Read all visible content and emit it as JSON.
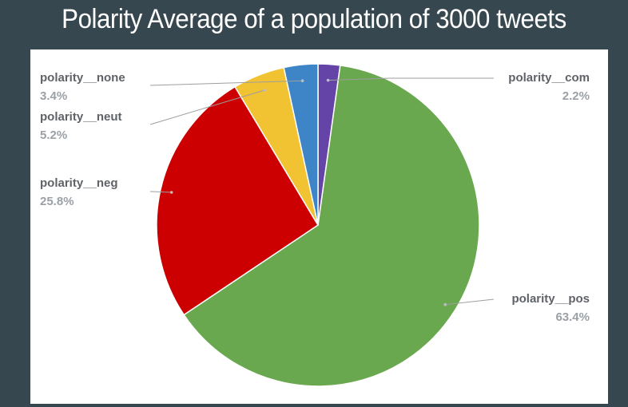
{
  "slide": {
    "title": "Polarity Average of a population of 3000 tweets"
  },
  "chart_data": {
    "type": "pie",
    "title": "Polarity Average of a population of 3000 tweets",
    "start_angle_deg": 0,
    "direction": "clockwise",
    "slices": [
      {
        "key": "com",
        "label": "polarity__com",
        "percent_label": "2.2%",
        "value": 2.2,
        "color": "#6544a8"
      },
      {
        "key": "pos",
        "label": "polarity__pos",
        "percent_label": "63.4%",
        "value": 63.4,
        "color": "#6aa84f"
      },
      {
        "key": "neg",
        "label": "polarity__neg",
        "percent_label": "25.8%",
        "value": 25.8,
        "color": "#cc0000"
      },
      {
        "key": "neut",
        "label": "polarity__neut",
        "percent_label": "5.2%",
        "value": 5.2,
        "color": "#f1c232"
      },
      {
        "key": "none",
        "label": "polarity__none",
        "percent_label": "3.4%",
        "value": 3.4,
        "color": "#3d85c6"
      }
    ]
  }
}
